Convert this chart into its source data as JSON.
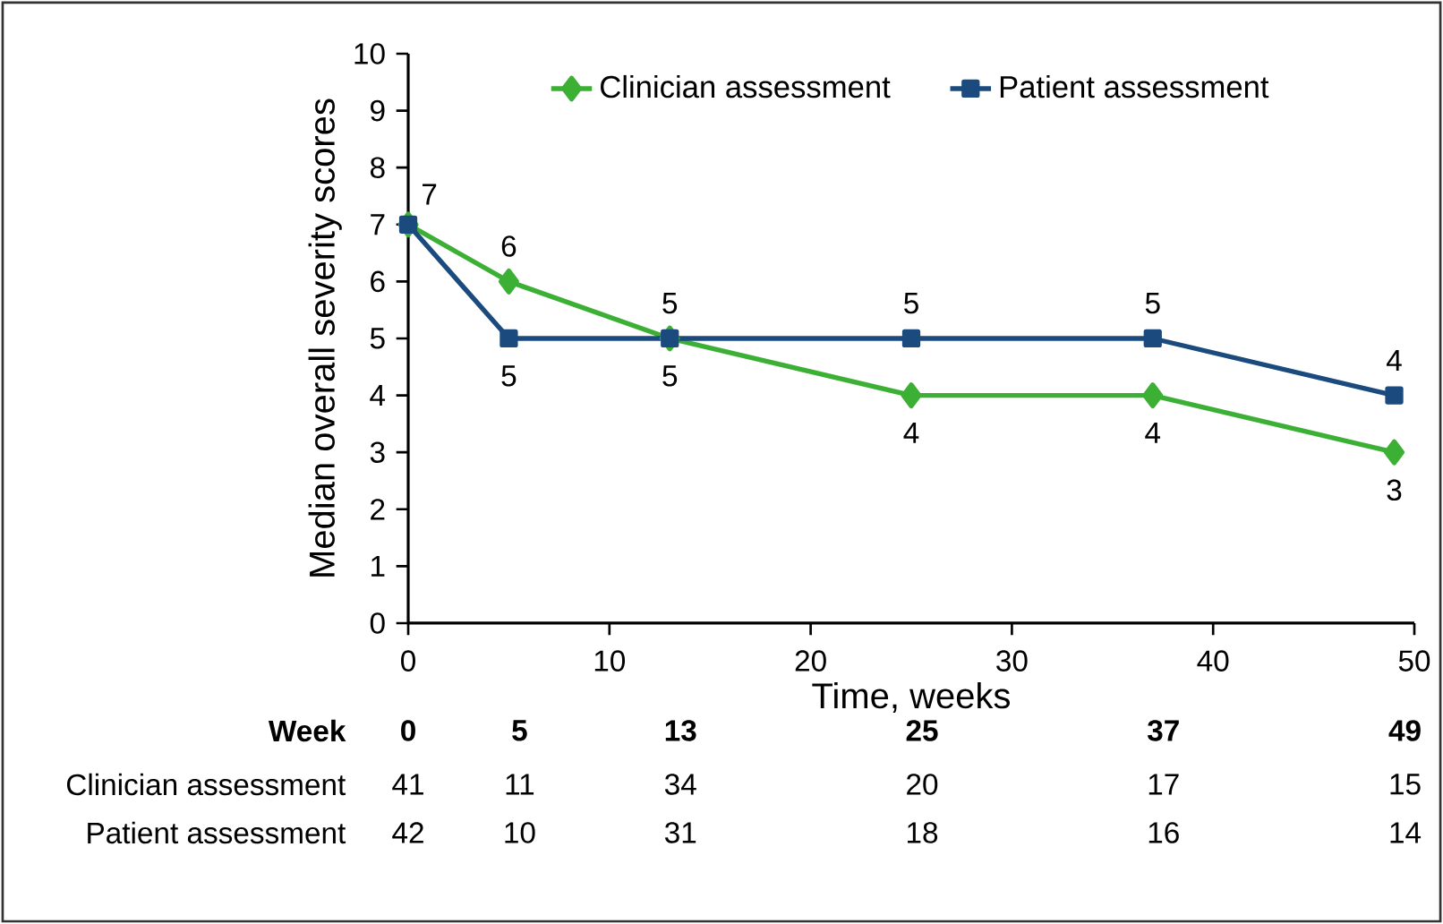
{
  "chart_data": {
    "type": "line",
    "xlabel": "Time, weeks",
    "ylabel": "Median overall severity scores",
    "x": [
      0,
      5,
      13,
      25,
      37,
      49
    ],
    "series": [
      {
        "name": "Clinician assessment",
        "color": "#3cb034",
        "marker": "diamond",
        "values": [
          7,
          6,
          5,
          4,
          4,
          3
        ],
        "value_labels": [
          null,
          "6",
          "5",
          "4",
          "4",
          "3"
        ]
      },
      {
        "name": "Patient assessment",
        "color": "#1a4a7e",
        "marker": "square",
        "values": [
          7,
          5,
          5,
          5,
          5,
          4
        ],
        "value_labels": [
          "7",
          "5",
          "5",
          "5",
          "5",
          "4"
        ]
      }
    ],
    "xlim": [
      0,
      50
    ],
    "xticks": [
      0,
      10,
      20,
      30,
      40,
      50
    ],
    "ylim": [
      0,
      10
    ],
    "yticks": [
      0,
      1,
      2,
      3,
      4,
      5,
      6,
      7,
      8,
      9,
      10
    ],
    "grid": false,
    "legend": "top",
    "annotations": [
      "Week",
      "0",
      "5",
      "13",
      "25",
      "37",
      "49",
      "Clinician assessment",
      "41",
      "11",
      "34",
      "20",
      "17",
      "15",
      "Patient assessment",
      "42",
      "10",
      "31",
      "18",
      "16",
      "14"
    ]
  }
}
